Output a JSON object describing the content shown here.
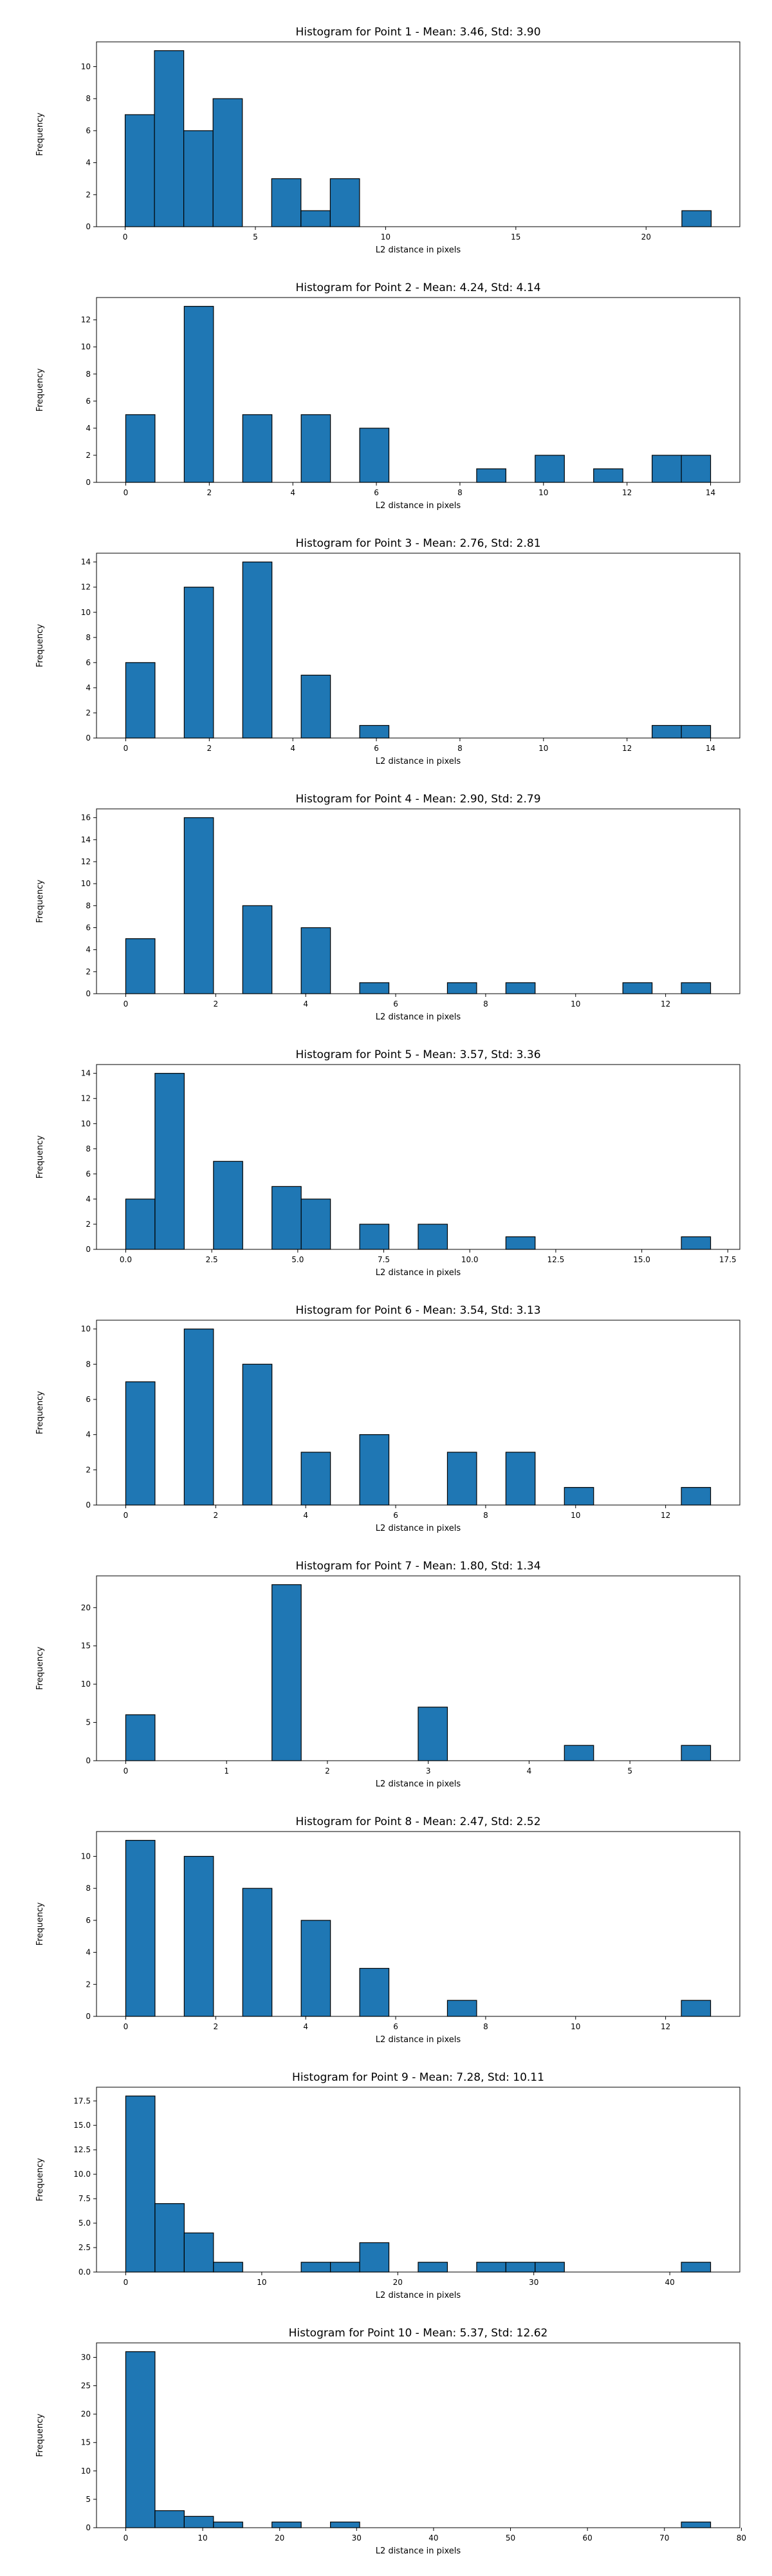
{
  "colors": {
    "bar_fill": "#1f77b4",
    "bar_edge": "#000000",
    "axis": "#000000"
  },
  "chart_data": [
    {
      "type": "bar",
      "title": "Histogram for Point 1 - Mean: 3.46, Std: 3.90",
      "xlabel": "L2 distance in pixels",
      "ylabel": "Frequency",
      "xlim": [
        -1.1,
        23.6
      ],
      "ylim": [
        0,
        11.55
      ],
      "xticks": [
        0,
        5,
        10,
        15,
        20
      ],
      "yticks": [
        0,
        2,
        4,
        6,
        8,
        10
      ],
      "bin_edges": [
        0,
        1.125,
        2.25,
        3.375,
        4.5,
        5.625,
        6.75,
        7.875,
        9.0,
        10.125,
        11.25,
        12.375,
        13.5,
        14.625,
        15.75,
        16.875,
        18.0,
        19.125,
        20.25,
        21.375,
        22.5
      ],
      "counts": [
        7,
        11,
        6,
        8,
        0,
        3,
        1,
        3,
        0,
        0,
        0,
        0,
        0,
        0,
        0,
        0,
        0,
        0,
        0,
        1
      ],
      "grid": false
    },
    {
      "type": "bar",
      "title": "Histogram for Point 2 - Mean: 4.24, Std: 4.14",
      "xlabel": "L2 distance in pixels",
      "ylabel": "Frequency",
      "xlim": [
        -0.7,
        14.7
      ],
      "ylim": [
        0,
        13.65
      ],
      "xticks": [
        0,
        2,
        4,
        6,
        8,
        10,
        12,
        14
      ],
      "yticks": [
        0,
        2,
        4,
        6,
        8,
        10,
        12
      ],
      "bin_edges": [
        0,
        0.7,
        1.4,
        2.1,
        2.8,
        3.5,
        4.2,
        4.9,
        5.6,
        6.3,
        7.0,
        7.7,
        8.4,
        9.1,
        9.8,
        10.5,
        11.2,
        11.9,
        12.6,
        13.3,
        14.0
      ],
      "counts": [
        5,
        0,
        13,
        0,
        5,
        0,
        5,
        0,
        4,
        0,
        0,
        0,
        1,
        0,
        2,
        0,
        1,
        0,
        2,
        2
      ],
      "grid": false
    },
    {
      "type": "bar",
      "title": "Histogram for Point 3 - Mean: 2.76, Std: 2.81",
      "xlabel": "L2 distance in pixels",
      "ylabel": "Frequency",
      "xlim": [
        -0.7,
        14.7
      ],
      "ylim": [
        0,
        14.7
      ],
      "xticks": [
        0,
        2,
        4,
        6,
        8,
        10,
        12,
        14
      ],
      "yticks": [
        0,
        2,
        4,
        6,
        8,
        10,
        12,
        14
      ],
      "bin_edges": [
        0,
        0.7,
        1.4,
        2.1,
        2.8,
        3.5,
        4.2,
        4.9,
        5.6,
        6.3,
        7.0,
        7.7,
        8.4,
        9.1,
        9.8,
        10.5,
        11.2,
        11.9,
        12.6,
        13.3,
        14.0
      ],
      "counts": [
        6,
        0,
        12,
        0,
        14,
        0,
        5,
        0,
        1,
        0,
        0,
        0,
        0,
        0,
        0,
        0,
        0,
        0,
        1,
        1
      ],
      "grid": false
    },
    {
      "type": "bar",
      "title": "Histogram for Point 4 - Mean: 2.90, Std: 2.79",
      "xlabel": "L2 distance in pixels",
      "ylabel": "Frequency",
      "xlim": [
        -0.65,
        13.65
      ],
      "ylim": [
        0,
        16.8
      ],
      "xticks": [
        0,
        2,
        4,
        6,
        8,
        10,
        12
      ],
      "yticks": [
        0,
        2,
        4,
        6,
        8,
        10,
        12,
        14,
        16
      ],
      "bin_edges": [
        0,
        0.65,
        1.3,
        1.95,
        2.6,
        3.25,
        3.9,
        4.55,
        5.2,
        5.85,
        6.5,
        7.15,
        7.8,
        8.45,
        9.1,
        9.75,
        10.4,
        11.05,
        11.7,
        12.35,
        13.0
      ],
      "counts": [
        5,
        0,
        16,
        0,
        8,
        0,
        6,
        0,
        1,
        0,
        0,
        1,
        0,
        1,
        0,
        0,
        0,
        1,
        0,
        1
      ],
      "grid": false
    },
    {
      "type": "bar",
      "title": "Histogram for Point 5 - Mean: 3.57, Std: 3.36",
      "xlabel": "L2 distance in pixels",
      "ylabel": "Frequency",
      "xlim": [
        -0.85,
        17.85
      ],
      "ylim": [
        0,
        14.7
      ],
      "xticks": [
        0.0,
        2.5,
        5.0,
        7.5,
        10.0,
        12.5,
        15.0,
        17.5
      ],
      "xtick_labels": [
        "0.0",
        "2.5",
        "5.0",
        "7.5",
        "10.0",
        "12.5",
        "15.0",
        "17.5"
      ],
      "yticks": [
        0,
        2,
        4,
        6,
        8,
        10,
        12,
        14
      ],
      "bin_edges": [
        0,
        0.85,
        1.7,
        2.55,
        3.4,
        4.25,
        5.1,
        5.95,
        6.8,
        7.65,
        8.5,
        9.35,
        10.2,
        11.05,
        11.9,
        12.75,
        13.6,
        14.45,
        15.3,
        16.15,
        17.0
      ],
      "counts": [
        4,
        14,
        0,
        7,
        0,
        5,
        4,
        0,
        2,
        0,
        2,
        0,
        0,
        1,
        0,
        0,
        0,
        0,
        0,
        1
      ],
      "grid": false
    },
    {
      "type": "bar",
      "title": "Histogram for Point 6 - Mean: 3.54, Std: 3.13",
      "xlabel": "L2 distance in pixels",
      "ylabel": "Frequency",
      "xlim": [
        -0.65,
        13.65
      ],
      "ylim": [
        0,
        10.5
      ],
      "xticks": [
        0,
        2,
        4,
        6,
        8,
        10,
        12
      ],
      "yticks": [
        0,
        2,
        4,
        6,
        8,
        10
      ],
      "bin_edges": [
        0,
        0.65,
        1.3,
        1.95,
        2.6,
        3.25,
        3.9,
        4.55,
        5.2,
        5.85,
        6.5,
        7.15,
        7.8,
        8.45,
        9.1,
        9.75,
        10.4,
        11.05,
        11.7,
        12.35,
        13.0
      ],
      "counts": [
        7,
        0,
        10,
        0,
        8,
        0,
        3,
        0,
        4,
        0,
        0,
        3,
        0,
        3,
        0,
        1,
        0,
        0,
        0,
        1
      ],
      "grid": false
    },
    {
      "type": "bar",
      "title": "Histogram for Point 7 - Mean: 1.80, Std: 1.34",
      "xlabel": "L2 distance in pixels",
      "ylabel": "Frequency",
      "xlim": [
        -0.29,
        6.09
      ],
      "ylim": [
        0,
        24.15
      ],
      "xticks": [
        0,
        1,
        2,
        3,
        4,
        5
      ],
      "yticks": [
        0,
        5,
        10,
        15,
        20
      ],
      "bin_edges": [
        0,
        0.29,
        0.58,
        0.87,
        1.16,
        1.45,
        1.74,
        2.03,
        2.32,
        2.61,
        2.9,
        3.19,
        3.48,
        3.77,
        4.06,
        4.35,
        4.64,
        4.93,
        5.22,
        5.51,
        5.8
      ],
      "counts": [
        6,
        0,
        0,
        0,
        0,
        23,
        0,
        0,
        0,
        0,
        7,
        0,
        0,
        0,
        0,
        2,
        0,
        0,
        0,
        2
      ],
      "grid": false
    },
    {
      "type": "bar",
      "title": "Histogram for Point 8 - Mean: 2.47, Std: 2.52",
      "xlabel": "L2 distance in pixels",
      "ylabel": "Frequency",
      "xlim": [
        -0.65,
        13.65
      ],
      "ylim": [
        0,
        11.55
      ],
      "xticks": [
        0,
        2,
        4,
        6,
        8,
        10,
        12
      ],
      "yticks": [
        0,
        2,
        4,
        6,
        8,
        10
      ],
      "bin_edges": [
        0,
        0.65,
        1.3,
        1.95,
        2.6,
        3.25,
        3.9,
        4.55,
        5.2,
        5.85,
        6.5,
        7.15,
        7.8,
        8.45,
        9.1,
        9.75,
        10.4,
        11.05,
        11.7,
        12.35,
        13.0
      ],
      "counts": [
        11,
        0,
        10,
        0,
        8,
        0,
        6,
        0,
        3,
        0,
        0,
        1,
        0,
        0,
        0,
        0,
        0,
        0,
        0,
        1
      ],
      "grid": false
    },
    {
      "type": "bar",
      "title": "Histogram for Point 9 - Mean: 7.28, Std: 10.11",
      "xlabel": "L2 distance in pixels",
      "ylabel": "Frequency",
      "xlim": [
        -2.15,
        45.15
      ],
      "ylim": [
        0,
        18.9
      ],
      "xticks": [
        0,
        10,
        20,
        30,
        40
      ],
      "yticks": [
        0,
        2.5,
        5,
        7.5,
        10,
        12.5,
        15,
        17.5
      ],
      "ytick_labels": [
        "0.0",
        "2.5",
        "5.0",
        "7.5",
        "10.0",
        "12.5",
        "15.0",
        "17.5"
      ],
      "bin_edges": [
        0,
        2.15,
        4.3,
        6.45,
        8.6,
        10.75,
        12.9,
        15.05,
        17.2,
        19.35,
        21.5,
        23.65,
        25.8,
        27.95,
        30.1,
        32.25,
        34.4,
        36.55,
        38.7,
        40.85,
        43.0
      ],
      "counts": [
        18,
        7,
        4,
        1,
        0,
        0,
        1,
        1,
        3,
        0,
        1,
        0,
        1,
        1,
        1,
        0,
        0,
        0,
        0,
        1
      ],
      "grid": false
    },
    {
      "type": "bar",
      "title": "Histogram for Point 10 - Mean: 5.37, Std: 12.62",
      "xlabel": "L2 distance in pixels",
      "ylabel": "Frequency",
      "xlim": [
        -3.8,
        79.8
      ],
      "ylim": [
        0,
        32.55
      ],
      "xticks": [
        0,
        10,
        20,
        30,
        40,
        50,
        60,
        70,
        80
      ],
      "yticks": [
        0,
        5,
        10,
        15,
        20,
        25,
        30
      ],
      "bin_edges": [
        0,
        3.8,
        7.6,
        11.4,
        15.2,
        19.0,
        22.8,
        26.6,
        30.4,
        34.2,
        38.0,
        41.8,
        45.6,
        49.4,
        53.2,
        57.0,
        60.8,
        64.6,
        68.4,
        72.2,
        76.0
      ],
      "counts": [
        31,
        3,
        2,
        1,
        0,
        1,
        0,
        1,
        0,
        0,
        0,
        0,
        0,
        0,
        0,
        0,
        0,
        0,
        0,
        1
      ],
      "grid": false
    }
  ]
}
